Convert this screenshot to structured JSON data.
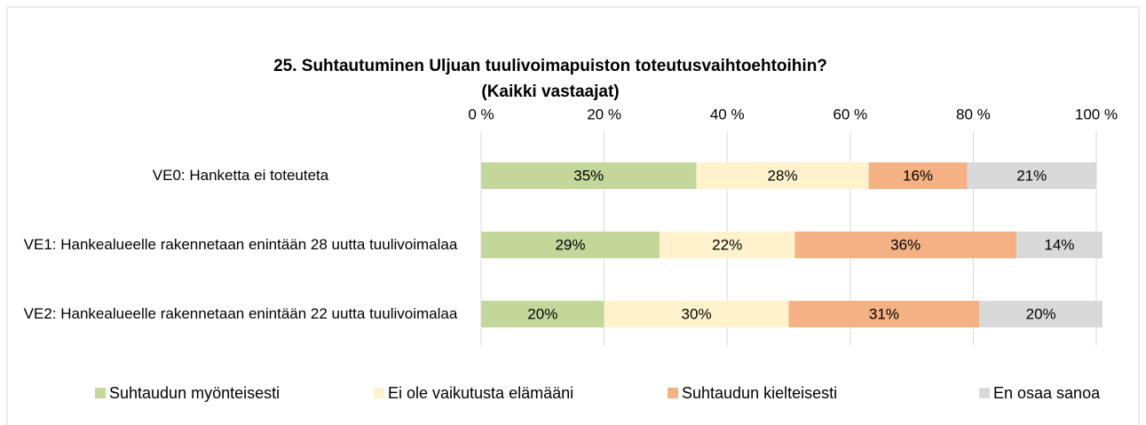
{
  "chart_data": {
    "type": "stacked-barh",
    "title": "25. Suhtautuminen Uljuan tuulivoimapuiston toteutusvaihtoehtoihin?",
    "subtitle": "(Kaikki vastaajat)",
    "categories": [
      "VE0: Hanketta ei toteuteta",
      "VE1: Hankealueelle rakennetaan enintään 28 uutta tuulivoimalaa",
      "VE2: Hankealueelle rakennetaan enintään 22 uutta tuulivoimalaa"
    ],
    "series": [
      {
        "name": "Suhtaudun myönteisesti",
        "color": "#c4d79b",
        "values": [
          35,
          29,
          20
        ],
        "value_labels": [
          "35%",
          "29%",
          "20%"
        ]
      },
      {
        "name": "Ei ole vaikutusta elämääni",
        "color": "#fff2cc",
        "values": [
          28,
          22,
          30
        ],
        "value_labels": [
          "28%",
          "22%",
          "30%"
        ]
      },
      {
        "name": "Suhtaudun kielteisesti",
        "color": "#f4b183",
        "values": [
          16,
          36,
          31
        ],
        "value_labels": [
          "16%",
          "36%",
          "31%"
        ]
      },
      {
        "name": "En osaa sanoa",
        "color": "#d9d9d9",
        "values": [
          21,
          14,
          20
        ],
        "value_labels": [
          "21%",
          "14%",
          "20%"
        ]
      }
    ],
    "xlim": [
      0,
      100
    ],
    "xticks": [
      {
        "value": 0,
        "label": "0 %"
      },
      {
        "value": 20,
        "label": "20 %"
      },
      {
        "value": 40,
        "label": "40 %"
      },
      {
        "value": 60,
        "label": "60 %"
      },
      {
        "value": 80,
        "label": "80 %"
      },
      {
        "value": 100,
        "label": "100 %"
      }
    ],
    "grid": true,
    "legend": "bottom"
  }
}
